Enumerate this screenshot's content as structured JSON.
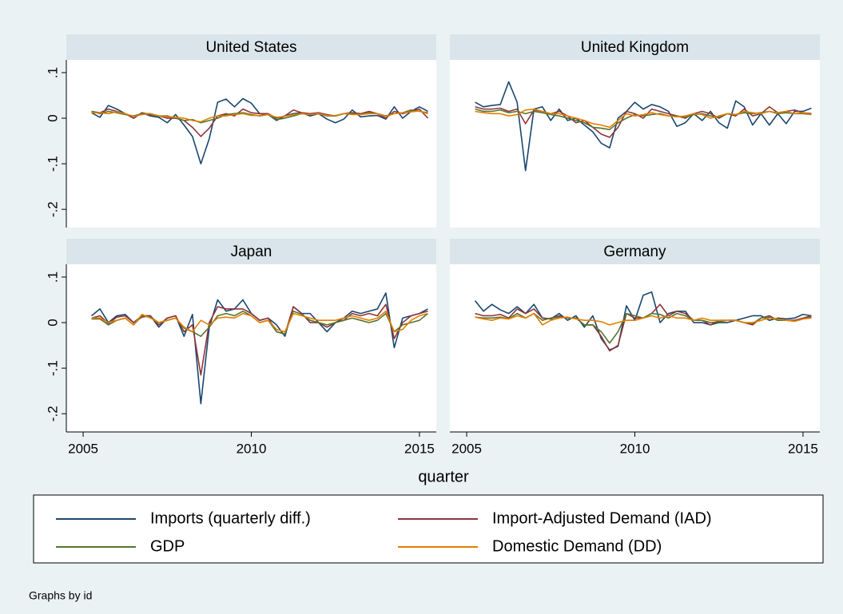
{
  "x_label": "quarter",
  "note": "Graphs by id",
  "chart_data": [
    {
      "type": "line",
      "title": "United States",
      "x": [
        2005.25,
        2005.5,
        2005.75,
        2006,
        2006.25,
        2006.5,
        2006.75,
        2007,
        2007.25,
        2007.5,
        2007.75,
        2008,
        2008.25,
        2008.5,
        2008.75,
        2009,
        2009.25,
        2009.5,
        2009.75,
        2010,
        2010.25,
        2010.5,
        2010.75,
        2011,
        2011.25,
        2011.5,
        2011.75,
        2012,
        2012.25,
        2012.5,
        2012.75,
        2013,
        2013.25,
        2013.5,
        2013.75,
        2014,
        2014.25,
        2014.5,
        2014.75,
        2015,
        2015.25
      ],
      "xlim": [
        2004.5,
        2015.5
      ],
      "ylim": [
        -0.24,
        0.128
      ],
      "yticks": [
        {
          "value": 0.1,
          "label": ".1"
        },
        0,
        {
          "value": -0.1,
          "label": "-.1"
        },
        {
          "value": -0.2,
          "label": "-.2"
        }
      ],
      "series": [
        {
          "name": "Imports (quarterly diff.)",
          "color": "#1a476f",
          "values": [
            0.012,
            0.002,
            0.028,
            0.02,
            0.01,
            0,
            0.012,
            0.005,
            0.002,
            -0.01,
            0.008,
            -0.015,
            -0.04,
            -0.1,
            -0.045,
            0.035,
            0.042,
            0.025,
            0.043,
            0.033,
            0.01,
            0.008,
            -0.005,
            0.005,
            0.01,
            0.012,
            0.005,
            0.01,
            -0.002,
            -0.01,
            -0.002,
            0.018,
            0.003,
            0.005,
            0.006,
            -0.002,
            0.025,
            0,
            0.015,
            0.025,
            0.015
          ]
        },
        {
          "name": "Import-Adjusted Demand (IAD)",
          "color": "#90353b",
          "values": [
            0.015,
            0.012,
            0.02,
            0.015,
            0.01,
            0,
            0.012,
            0.008,
            0.005,
            0,
            0,
            -0.005,
            -0.02,
            -0.04,
            -0.022,
            0.005,
            0.01,
            0.005,
            0.02,
            0.012,
            0.01,
            0.01,
            0,
            0.005,
            0.018,
            0.012,
            0.01,
            0.012,
            0.008,
            0.005,
            0.01,
            0.012,
            0.01,
            0.015,
            0.01,
            0,
            0.015,
            0.01,
            0.015,
            0.02,
            0
          ]
        },
        {
          "name": "GDP",
          "color": "#55752f",
          "values": [
            0.015,
            0.01,
            0.015,
            0.012,
            0.008,
            0.005,
            0.01,
            0.01,
            0.005,
            0.005,
            0,
            -0.005,
            -0.003,
            -0.01,
            -0.005,
            0,
            0.008,
            0.01,
            0.012,
            0.008,
            0.005,
            0.008,
            -0.003,
            0,
            0.005,
            0.01,
            0.008,
            0.01,
            0.005,
            0.005,
            0.01,
            0.01,
            0.008,
            0.012,
            0.01,
            0.005,
            0.01,
            0.012,
            0.018,
            0.015,
            0.012
          ]
        },
        {
          "name": "Domestic Demand (DD)",
          "color": "#e37e00",
          "values": [
            0.012,
            0.012,
            0.01,
            0.014,
            0.01,
            0.004,
            0.008,
            0.01,
            0.005,
            0.003,
            0.002,
            0,
            -0.005,
            -0.008,
            0,
            0.005,
            0.005,
            0.008,
            0.01,
            0.006,
            0.006,
            0.008,
            0.002,
            0.004,
            0.008,
            0.01,
            0.008,
            0.01,
            0.006,
            0.006,
            0.01,
            0.008,
            0.008,
            0.01,
            0.01,
            0.004,
            0.01,
            0.012,
            0.014,
            0.016,
            0.01
          ]
        }
      ]
    },
    {
      "type": "line",
      "title": "United Kingdom",
      "x": [
        2005.25,
        2005.5,
        2005.75,
        2006,
        2006.25,
        2006.5,
        2006.75,
        2007,
        2007.25,
        2007.5,
        2007.75,
        2008,
        2008.25,
        2008.5,
        2008.75,
        2009,
        2009.25,
        2009.5,
        2009.75,
        2010,
        2010.25,
        2010.5,
        2010.75,
        2011,
        2011.25,
        2011.5,
        2011.75,
        2012,
        2012.25,
        2012.5,
        2012.75,
        2013,
        2013.25,
        2013.5,
        2013.75,
        2014,
        2014.25,
        2014.5,
        2014.75,
        2015,
        2015.25
      ],
      "xlim": [
        2004.5,
        2015.5
      ],
      "ylim": [
        -0.24,
        0.128
      ],
      "series": [
        {
          "name": "Imports (quarterly diff.)",
          "color": "#1a476f",
          "values": [
            0.035,
            0.025,
            0.028,
            0.03,
            0.08,
            0.035,
            -0.115,
            0.02,
            0.025,
            -0.005,
            0.02,
            -0.005,
            0,
            -0.015,
            -0.03,
            -0.055,
            -0.065,
            0,
            0.015,
            0.035,
            0.02,
            0.03,
            0.025,
            0.015,
            -0.018,
            -0.01,
            0.01,
            -0.005,
            0.015,
            -0.01,
            -0.022,
            0.038,
            0.025,
            -0.015,
            0.01,
            -0.015,
            0.01,
            -0.012,
            0.015,
            0.015,
            0.022
          ]
        },
        {
          "name": "Import-Adjusted Demand (IAD)",
          "color": "#90353b",
          "values": [
            0.025,
            0.02,
            0.02,
            0.022,
            0.015,
            0.02,
            -0.012,
            0.018,
            0.015,
            0.01,
            0.015,
            0.005,
            -0.01,
            -0.005,
            -0.02,
            -0.035,
            -0.042,
            -0.02,
            0.015,
            0.01,
            0,
            0.02,
            0.015,
            0.01,
            0.005,
            0,
            0.01,
            0.015,
            0.01,
            0,
            0.01,
            0.005,
            0.02,
            0.005,
            0.01,
            0.025,
            0.012,
            0.015,
            0.018,
            0.012,
            0.01
          ]
        },
        {
          "name": "GDP",
          "color": "#55752f",
          "values": [
            0.02,
            0.015,
            0.015,
            0.018,
            0.012,
            0.015,
            0.01,
            0.015,
            0.012,
            0.008,
            0.005,
            0,
            -0.005,
            -0.01,
            -0.02,
            -0.022,
            -0.025,
            -0.01,
            0,
            0.008,
            0.005,
            0.008,
            0.01,
            0.005,
            0.005,
            0.002,
            0.008,
            0.01,
            0.005,
            0.002,
            0.01,
            0.008,
            0.012,
            0.01,
            0.012,
            0.015,
            0.01,
            0.012,
            0.01,
            0.01,
            0.008
          ]
        },
        {
          "name": "Domestic Demand (DD)",
          "color": "#e37e00",
          "values": [
            0.015,
            0.012,
            0.01,
            0.01,
            0.005,
            0.008,
            0.018,
            0.02,
            0.015,
            0.01,
            0.01,
            0.005,
            0,
            -0.005,
            -0.012,
            -0.015,
            -0.02,
            -0.005,
            0.01,
            0.005,
            0.008,
            0.012,
            0.008,
            0.005,
            0.003,
            0.005,
            0.01,
            0.008,
            0,
            0.005,
            0.01,
            0.008,
            0.015,
            0.012,
            0.01,
            0.015,
            0.012,
            0.015,
            0.01,
            0.012,
            0.008
          ]
        }
      ]
    },
    {
      "type": "line",
      "title": "Japan",
      "x": [
        2005.25,
        2005.5,
        2005.75,
        2006,
        2006.25,
        2006.5,
        2006.75,
        2007,
        2007.25,
        2007.5,
        2007.75,
        2008,
        2008.25,
        2008.5,
        2008.75,
        2009,
        2009.25,
        2009.5,
        2009.75,
        2010,
        2010.25,
        2010.5,
        2010.75,
        2011,
        2011.25,
        2011.5,
        2011.75,
        2012,
        2012.25,
        2012.5,
        2012.75,
        2013,
        2013.25,
        2013.5,
        2013.75,
        2014,
        2014.25,
        2014.5,
        2014.75,
        2015,
        2015.25
      ],
      "xlim": [
        2004.5,
        2015.5
      ],
      "xticks": [
        2005,
        2010,
        2015
      ],
      "ylim": [
        -0.24,
        0.128
      ],
      "yticks": [
        {
          "value": 0.1,
          "label": ".1"
        },
        0,
        {
          "value": -0.1,
          "label": "-.1"
        },
        {
          "value": -0.2,
          "label": "-.2"
        }
      ],
      "series": [
        {
          "name": "Imports (quarterly diff.)",
          "color": "#1a476f",
          "values": [
            0.015,
            0.03,
            0,
            0.015,
            0.018,
            0,
            0.015,
            0.015,
            -0.01,
            0.01,
            0.015,
            -0.03,
            0.018,
            -0.178,
            -0.01,
            0.05,
            0.025,
            0.03,
            0.05,
            0.02,
            0.005,
            0.01,
            -0.005,
            -0.03,
            0.035,
            0.02,
            0.02,
            0,
            -0.02,
            0,
            0.01,
            0.025,
            0.02,
            0.025,
            0.03,
            0.065,
            -0.055,
            0.01,
            0.015,
            0.02,
            0.03
          ]
        },
        {
          "name": "Import-Adjusted Demand (IAD)",
          "color": "#90353b",
          "values": [
            0.01,
            0.015,
            -0.002,
            0.012,
            0.015,
            0,
            0.012,
            0.015,
            -0.005,
            0.01,
            0.015,
            -0.02,
            -0.005,
            -0.115,
            0,
            0.035,
            0.03,
            0.03,
            0.03,
            0.02,
            0.005,
            0.01,
            -0.02,
            -0.025,
            0.035,
            0.02,
            0,
            0,
            -0.01,
            0,
            0.005,
            0.02,
            0.015,
            0.02,
            0.015,
            0.04,
            -0.035,
            0,
            0.015,
            0.02,
            0.025
          ]
        },
        {
          "name": "GDP",
          "color": "#55752f",
          "values": [
            0.008,
            0.008,
            -0.005,
            0.005,
            0.01,
            -0.005,
            0.015,
            0.012,
            0,
            0.005,
            0.01,
            -0.012,
            -0.02,
            -0.03,
            -0.01,
            0.015,
            0.02,
            0.015,
            0.025,
            0.015,
            0,
            0.005,
            -0.02,
            -0.025,
            0.025,
            0.018,
            0.005,
            0,
            -0.005,
            0,
            0.005,
            0.01,
            0.005,
            0,
            0.005,
            0.02,
            -0.02,
            -0.005,
            0,
            0.005,
            0.02
          ]
        },
        {
          "name": "Domestic Demand (DD)",
          "color": "#e37e00",
          "values": [
            0.01,
            0.01,
            0,
            0.005,
            0.01,
            -0.005,
            0.018,
            0.01,
            0,
            0.005,
            0.01,
            -0.01,
            -0.02,
            0.005,
            -0.005,
            0.01,
            0.012,
            0.01,
            0.02,
            0.015,
            0,
            0.005,
            -0.015,
            -0.02,
            0.02,
            0.015,
            0.01,
            0.005,
            0.005,
            0.005,
            0.01,
            0.015,
            0.01,
            0.005,
            0.01,
            0.025,
            -0.02,
            -0.015,
            0.005,
            0.015,
            0.02
          ]
        }
      ]
    },
    {
      "type": "line",
      "title": "Germany",
      "x": [
        2005.25,
        2005.5,
        2005.75,
        2006,
        2006.25,
        2006.5,
        2006.75,
        2007,
        2007.25,
        2007.5,
        2007.75,
        2008,
        2008.25,
        2008.5,
        2008.75,
        2009,
        2009.25,
        2009.5,
        2009.75,
        2010,
        2010.25,
        2010.5,
        2010.75,
        2011,
        2011.25,
        2011.5,
        2011.75,
        2012,
        2012.25,
        2012.5,
        2012.75,
        2013,
        2013.25,
        2013.5,
        2013.75,
        2014,
        2014.25,
        2014.5,
        2014.75,
        2015,
        2015.25
      ],
      "xlim": [
        2004.5,
        2015.5
      ],
      "xticks": [
        2005,
        2010,
        2015
      ],
      "ylim": [
        -0.24,
        0.128
      ],
      "series": [
        {
          "name": "Imports (quarterly diff.)",
          "color": "#1a476f",
          "values": [
            0.048,
            0.025,
            0.04,
            0.028,
            0.02,
            0.035,
            0.02,
            0.04,
            0.01,
            0.008,
            0.02,
            0.005,
            0.015,
            -0.01,
            0.015,
            -0.035,
            -0.06,
            -0.052,
            0.037,
            0.005,
            0.06,
            0.067,
            0,
            0.02,
            0.025,
            0.025,
            0,
            0,
            -0.005,
            0,
            0,
            0.005,
            0.01,
            0.015,
            0.015,
            0.005,
            0.01,
            0.008,
            0.01,
            0.018,
            0.015
          ]
        },
        {
          "name": "Import-Adjusted Demand (IAD)",
          "color": "#90353b",
          "values": [
            0.02,
            0.015,
            0.015,
            0.018,
            0.01,
            0.03,
            0.02,
            0.03,
            0.01,
            0.008,
            0.015,
            0.01,
            0.01,
            -0.005,
            -0.005,
            -0.03,
            -0.062,
            -0.05,
            0.02,
            0.01,
            0.01,
            0.02,
            0.04,
            0.015,
            0.025,
            0.02,
            0.005,
            0.005,
            -0.005,
            0.005,
            0.005,
            0.005,
            0,
            -0.005,
            0.01,
            0.015,
            0.005,
            0.005,
            0.005,
            0.01,
            0.015
          ]
        },
        {
          "name": "GDP",
          "color": "#55752f",
          "values": [
            0.012,
            0.01,
            0.01,
            0.012,
            0.008,
            0.02,
            0.01,
            0.02,
            0.005,
            0.01,
            0.012,
            0.01,
            0.01,
            -0.005,
            -0.005,
            -0.02,
            -0.045,
            -0.02,
            0.02,
            0.015,
            0.01,
            0.02,
            0.018,
            0.01,
            0.02,
            0.015,
            0.005,
            0.005,
            0,
            0.002,
            0.005,
            0.005,
            0,
            -0.002,
            0.01,
            0.012,
            0.005,
            0.005,
            0.003,
            0.008,
            0.012
          ]
        },
        {
          "name": "Domestic Demand (DD)",
          "color": "#e37e00",
          "values": [
            0.012,
            0.008,
            0.005,
            0.01,
            0.008,
            0.015,
            0.01,
            0.02,
            -0.005,
            0.005,
            0.01,
            0.012,
            0.008,
            0.005,
            0.005,
            0.002,
            -0.005,
            0,
            0.005,
            0.005,
            0.01,
            0.015,
            0.01,
            0.015,
            0.01,
            0.01,
            0.005,
            0.01,
            0.005,
            0.005,
            0.005,
            0.005,
            0,
            0,
            0.005,
            0.01,
            0.008,
            0.005,
            0.003,
            0.008,
            0.01
          ]
        }
      ]
    }
  ]
}
